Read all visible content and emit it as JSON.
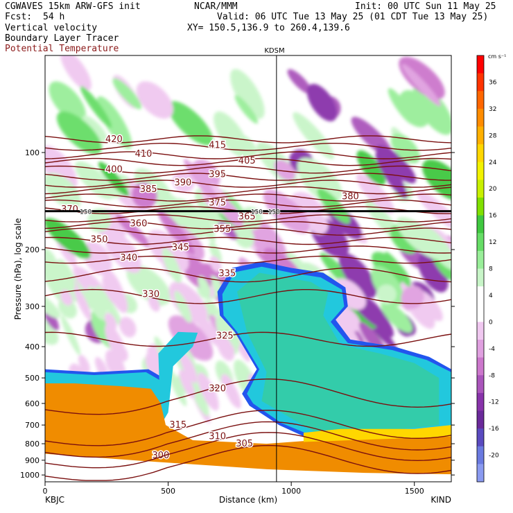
{
  "header": {
    "model": "CGWAVES 15km ARW-GFS init",
    "org": "NCAR/MMM",
    "init": "Init: 00 UTC Sun 11 May 25",
    "fcst_label": "Fcst:",
    "fcst_value": "54 h",
    "valid": "Valid: 06 UTC Tue 13 May 25 (01 CDT Tue 13 May 25)",
    "field1": "Vertical velocity",
    "xy": "XY= 150.5,136.9 to 260.4,139.6",
    "field2": "Boundary Layer Tracer",
    "field3": "Potential Temperature"
  },
  "colors": {
    "theta": "#7a0f0f",
    "tropopause": "#000000",
    "ground": "#ffffff"
  },
  "chart_data": {
    "type": "heatmap",
    "xlabel": "Distance (km)",
    "ylabel": "Pressure (hPa), log scale",
    "xlim": [
      0,
      1650
    ],
    "ylim": [
      1050,
      50
    ],
    "y_scale": "log",
    "x_ticks": [
      0,
      500,
      1000,
      1500
    ],
    "y_ticks": [
      100,
      200,
      300,
      400,
      500,
      600,
      700,
      800,
      900,
      1000
    ],
    "x_end_labels": {
      "left": "KBJC",
      "right": "KIND"
    },
    "marker": {
      "label": "KDSM",
      "x": 940
    },
    "colorbar": {
      "unit": "cm s⁻¹",
      "labels": [
        "36",
        "32",
        "28",
        "24",
        "20",
        "16",
        "12",
        "8",
        "4",
        "0",
        "-4",
        "-8",
        "-12",
        "-16",
        "-20"
      ],
      "colors": [
        "#ff0000",
        "#ff3300",
        "#ff6600",
        "#ff8c00",
        "#ffb000",
        "#ffd700",
        "#f2f200",
        "#c8f000",
        "#80e000",
        "#40c840",
        "#66dd66",
        "#99ee99",
        "#c8f5c8",
        "#ffffff",
        "#ffffff",
        "#f0c8f0",
        "#e0a0e0",
        "#cc77cc",
        "#aa55bb",
        "#8833aa",
        "#6a2a9a",
        "#5a4abf",
        "#6a7ae0",
        "#8a9af0"
      ]
    },
    "theta_contours": [
      {
        "value": 300,
        "label_x": 470,
        "label_p": 870
      },
      {
        "value": 305,
        "label_x": 810,
        "label_p": 800
      },
      {
        "value": 310,
        "label_x": 700,
        "label_p": 760
      },
      {
        "value": 315,
        "label_x": 540,
        "label_p": 700
      },
      {
        "value": 320,
        "label_x": 700,
        "label_p": 540
      },
      {
        "value": 325,
        "label_x": 730,
        "label_p": 370
      },
      {
        "value": 330,
        "label_x": 430,
        "label_p": 275
      },
      {
        "value": 335,
        "label_x": 740,
        "label_p": 237
      },
      {
        "value": 340,
        "label_x": 340,
        "label_p": 212
      },
      {
        "value": 345,
        "label_x": 550,
        "label_p": 197
      },
      {
        "value": 350,
        "label_x": 220,
        "label_p": 186
      },
      {
        "value": 355,
        "label_x": 720,
        "label_p": 173
      },
      {
        "value": 360,
        "label_x": 380,
        "label_p": 166
      },
      {
        "value": 365,
        "label_x": 820,
        "label_p": 158
      },
      {
        "value": 370,
        "label_x": 100,
        "label_p": 150
      },
      {
        "value": 375,
        "label_x": 700,
        "label_p": 143
      },
      {
        "value": 380,
        "label_x": 1240,
        "label_p": 137
      },
      {
        "value": 385,
        "label_x": 420,
        "label_p": 130
      },
      {
        "value": 390,
        "label_x": 560,
        "label_p": 124
      },
      {
        "value": 395,
        "label_x": 700,
        "label_p": 117
      },
      {
        "value": 400,
        "label_x": 280,
        "label_p": 113
      },
      {
        "value": 405,
        "label_x": 820,
        "label_p": 106
      },
      {
        "value": 410,
        "label_x": 400,
        "label_p": 101
      },
      {
        "value": 415,
        "label_x": 700,
        "label_p": 95
      },
      {
        "value": 420,
        "label_x": 280,
        "label_p": 91
      }
    ],
    "tropopause_p": 152,
    "tropopause_labels": [
      {
        "text": "150",
        "x": 165
      },
      {
        "text": "150",
        "x": 860
      },
      {
        "text": "150",
        "x": 930
      }
    ]
  }
}
